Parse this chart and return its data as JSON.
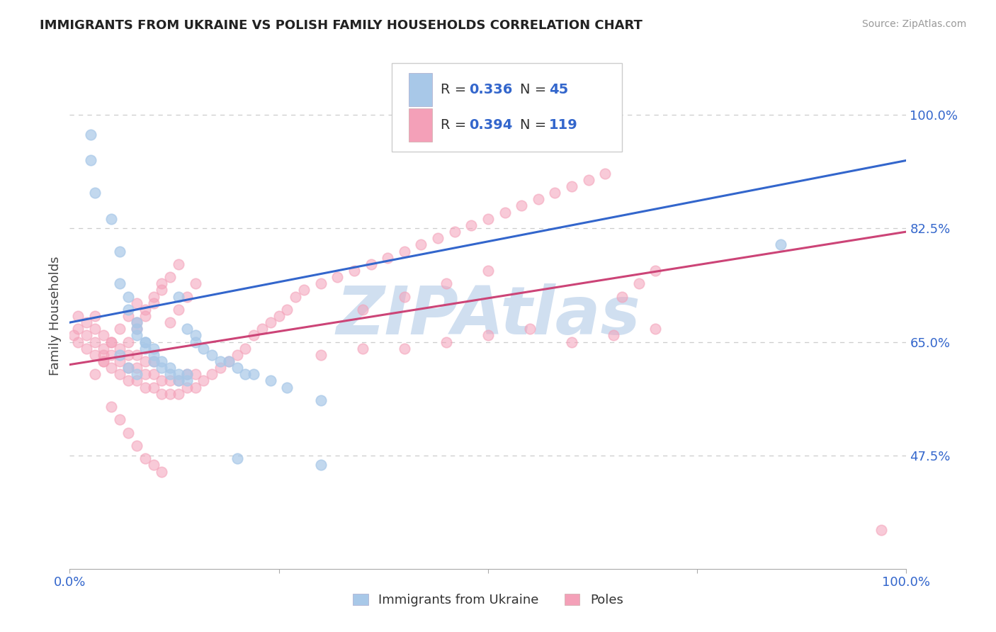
{
  "title": "IMMIGRANTS FROM UKRAINE VS POLISH FAMILY HOUSEHOLDS CORRELATION CHART",
  "source_text": "Source: ZipAtlas.com",
  "ylabel": "Family Households",
  "x_tick_labels": [
    "0.0%",
    "100.0%"
  ],
  "y_tick_labels_right": [
    "100.0%",
    "82.5%",
    "65.0%",
    "47.5%"
  ],
  "y_tick_values_right": [
    1.0,
    0.825,
    0.65,
    0.475
  ],
  "legend_r1": "0.336",
  "legend_n1": "45",
  "legend_r2": "0.394",
  "legend_n2": "119",
  "bottom_label_1": "Immigrants from Ukraine",
  "bottom_label_2": "Poles",
  "color_blue": "#a8c8e8",
  "color_pink": "#f4a0b8",
  "color_blue_line": "#3366cc",
  "color_pink_line": "#cc4477",
  "color_title": "#222222",
  "color_axis_blue": "#3366cc",
  "color_source": "#999999",
  "watermark_text": "ZIPAtlas",
  "watermark_color": "#d0dff0",
  "background_color": "#ffffff",
  "grid_color": "#cccccc",
  "xlim": [
    0.0,
    1.0
  ],
  "ylim": [
    0.3,
    1.08
  ],
  "blue_trend": [
    0.0,
    1.0,
    0.68,
    0.93
  ],
  "pink_trend": [
    0.0,
    1.0,
    0.615,
    0.82
  ],
  "ukraine_x": [
    0.025,
    0.025,
    0.03,
    0.05,
    0.06,
    0.06,
    0.07,
    0.07,
    0.08,
    0.08,
    0.08,
    0.09,
    0.09,
    0.09,
    0.1,
    0.1,
    0.1,
    0.11,
    0.11,
    0.12,
    0.12,
    0.13,
    0.13,
    0.14,
    0.14,
    0.15,
    0.15,
    0.16,
    0.17,
    0.18,
    0.19,
    0.2,
    0.21,
    0.22,
    0.24,
    0.26,
    0.3,
    0.85,
    0.13,
    0.14,
    0.06,
    0.07,
    0.08,
    0.2,
    0.3
  ],
  "ukraine_y": [
    0.97,
    0.93,
    0.88,
    0.84,
    0.79,
    0.74,
    0.72,
    0.7,
    0.68,
    0.67,
    0.66,
    0.65,
    0.65,
    0.64,
    0.64,
    0.63,
    0.62,
    0.62,
    0.61,
    0.61,
    0.6,
    0.6,
    0.59,
    0.59,
    0.67,
    0.66,
    0.65,
    0.64,
    0.63,
    0.62,
    0.62,
    0.61,
    0.6,
    0.6,
    0.59,
    0.58,
    0.56,
    0.8,
    0.72,
    0.6,
    0.63,
    0.61,
    0.6,
    0.47,
    0.46
  ],
  "poles_x": [
    0.005,
    0.01,
    0.01,
    0.01,
    0.02,
    0.02,
    0.02,
    0.03,
    0.03,
    0.03,
    0.03,
    0.04,
    0.04,
    0.04,
    0.05,
    0.05,
    0.05,
    0.06,
    0.06,
    0.06,
    0.07,
    0.07,
    0.07,
    0.08,
    0.08,
    0.08,
    0.09,
    0.09,
    0.09,
    0.1,
    0.1,
    0.1,
    0.11,
    0.11,
    0.12,
    0.12,
    0.13,
    0.13,
    0.14,
    0.14,
    0.15,
    0.15,
    0.16,
    0.17,
    0.18,
    0.19,
    0.2,
    0.21,
    0.22,
    0.23,
    0.24,
    0.25,
    0.26,
    0.27,
    0.28,
    0.3,
    0.32,
    0.34,
    0.36,
    0.38,
    0.4,
    0.42,
    0.44,
    0.46,
    0.48,
    0.5,
    0.52,
    0.54,
    0.56,
    0.58,
    0.6,
    0.62,
    0.64,
    0.66,
    0.68,
    0.7,
    0.35,
    0.4,
    0.45,
    0.5,
    0.08,
    0.09,
    0.1,
    0.11,
    0.12,
    0.13,
    0.14,
    0.15,
    0.07,
    0.08,
    0.09,
    0.1,
    0.11,
    0.12,
    0.13,
    0.04,
    0.05,
    0.06,
    0.07,
    0.08,
    0.03,
    0.04,
    0.05,
    0.06,
    0.07,
    0.08,
    0.09,
    0.1,
    0.11,
    0.4,
    0.45,
    0.5,
    0.55,
    0.6,
    0.65,
    0.7,
    0.3,
    0.35,
    0.97
  ],
  "poles_y": [
    0.66,
    0.65,
    0.67,
    0.69,
    0.64,
    0.66,
    0.68,
    0.63,
    0.65,
    0.67,
    0.69,
    0.62,
    0.64,
    0.66,
    0.61,
    0.63,
    0.65,
    0.6,
    0.62,
    0.64,
    0.59,
    0.61,
    0.63,
    0.59,
    0.61,
    0.63,
    0.58,
    0.6,
    0.62,
    0.58,
    0.6,
    0.62,
    0.57,
    0.59,
    0.57,
    0.59,
    0.57,
    0.59,
    0.58,
    0.6,
    0.58,
    0.6,
    0.59,
    0.6,
    0.61,
    0.62,
    0.63,
    0.64,
    0.66,
    0.67,
    0.68,
    0.69,
    0.7,
    0.72,
    0.73,
    0.74,
    0.75,
    0.76,
    0.77,
    0.78,
    0.79,
    0.8,
    0.81,
    0.82,
    0.83,
    0.84,
    0.85,
    0.86,
    0.87,
    0.88,
    0.89,
    0.9,
    0.91,
    0.72,
    0.74,
    0.76,
    0.7,
    0.72,
    0.74,
    0.76,
    0.68,
    0.7,
    0.72,
    0.74,
    0.68,
    0.7,
    0.72,
    0.74,
    0.65,
    0.67,
    0.69,
    0.71,
    0.73,
    0.75,
    0.77,
    0.63,
    0.65,
    0.67,
    0.69,
    0.71,
    0.6,
    0.62,
    0.55,
    0.53,
    0.51,
    0.49,
    0.47,
    0.46,
    0.45,
    0.64,
    0.65,
    0.66,
    0.67,
    0.65,
    0.66,
    0.67,
    0.63,
    0.64,
    0.36
  ]
}
